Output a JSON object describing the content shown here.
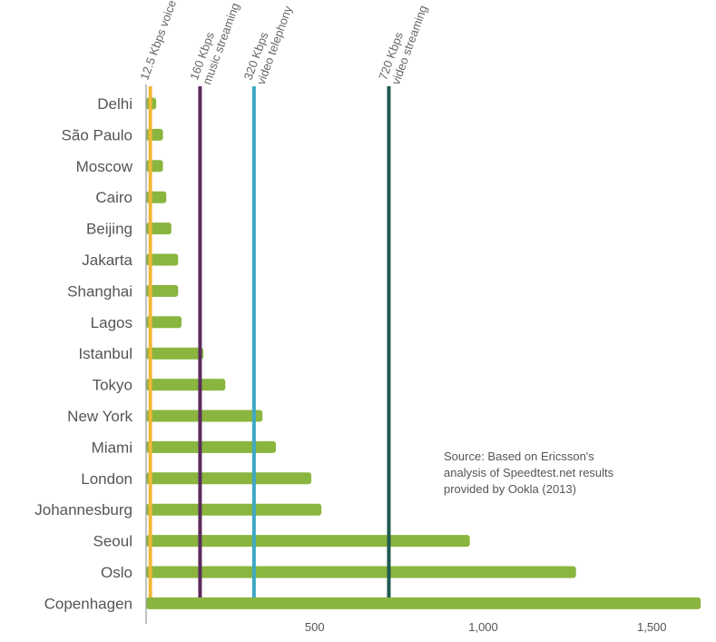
{
  "chart_data": {
    "type": "bar",
    "orientation": "horizontal",
    "categories": [
      "Delhi",
      "São Paulo",
      "Moscow",
      "Cairo",
      "Beijing",
      "Jakarta",
      "Shanghai",
      "Lagos",
      "Istanbul",
      "Tokyo",
      "New York",
      "Miami",
      "London",
      "Johannesburg",
      "Seoul",
      "Oslo",
      "Copenhagen"
    ],
    "series": [
      {
        "values": [
          30,
          50,
          50,
          60,
          75,
          95,
          95,
          105,
          170,
          235,
          345,
          385,
          490,
          520,
          960,
          1275,
          1645
        ]
      }
    ],
    "xlim": [
      0,
      1650
    ],
    "x_ticks": [
      {
        "value": 500,
        "label": "500"
      },
      {
        "value": 1000,
        "label": "1,000"
      },
      {
        "value": 1500,
        "label": "1,500"
      }
    ],
    "thresholds": [
      {
        "value": 12.5,
        "lines": [
          "12.5 Kbps voice"
        ],
        "color": "#f0b739"
      },
      {
        "value": 160,
        "lines": [
          "160 Kbps",
          "music streaming"
        ],
        "color": "#5b2a5e"
      },
      {
        "value": 320,
        "lines": [
          "320 Kbps",
          "video telephony"
        ],
        "color": "#3fa9c2"
      },
      {
        "value": 720,
        "lines": [
          "720 Kbps",
          "video streaming"
        ],
        "color": "#1f5a50"
      }
    ],
    "bar_color": "#8ab53f",
    "grid": false,
    "annotation": {
      "lines": [
        "Source: Based on Ericsson's",
        "analysis of Speedtest.net results",
        "provided by Ookla (2013)"
      ]
    }
  }
}
